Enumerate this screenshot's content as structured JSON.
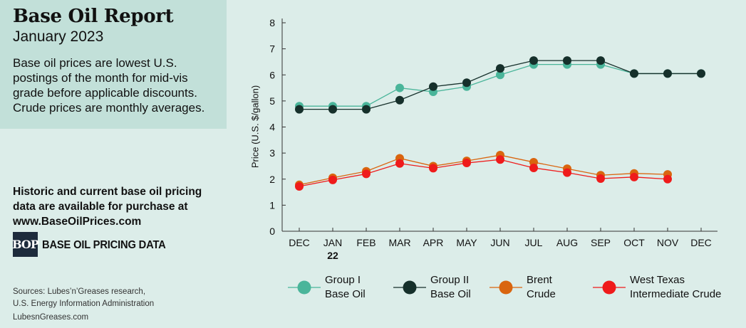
{
  "header": {
    "title": "Base Oil Report",
    "subtitle": "January 2023",
    "description": "Base oil prices are lowest U.S. postings of the month for mid-vis grade before applicable discounts. Crude prices are monthly averages."
  },
  "purchase": {
    "text": "Historic and current base oil pricing data are available for purchase at",
    "url": "www.BaseOilPrices.com"
  },
  "logo": {
    "mark": "BOP",
    "text": "BASE OIL PRICING DATA"
  },
  "sources": {
    "line1": "Sources: Lubes’n’Greases research,",
    "line2": "U.S. Energy Information Administration",
    "site": "LubesnGreases.com"
  },
  "chart_data": {
    "type": "line",
    "ylabel": "Price (U.S. $/gallon)",
    "xlabel": "",
    "ylim": [
      0,
      8
    ],
    "yticks": [
      "0",
      "1",
      "2",
      "3",
      "4",
      "5",
      "6",
      "7",
      "8"
    ],
    "categories": [
      "DEC",
      "JAN",
      "FEB",
      "MAR",
      "APR",
      "MAY",
      "JUN",
      "JUL",
      "AUG",
      "SEP",
      "OCT",
      "NOV",
      "DEC"
    ],
    "year_marker": {
      "label": "22"
    },
    "grid": false,
    "legend_position": "bottom",
    "series": [
      {
        "name": "Group I Base Oil",
        "legend_lines": [
          "Group I",
          "Base Oil"
        ],
        "color": "#4ab59a",
        "values": [
          4.8,
          4.8,
          4.8,
          5.5,
          5.35,
          5.55,
          6.0,
          6.4,
          6.4,
          6.4,
          6.05,
          6.05,
          6.05
        ]
      },
      {
        "name": "Group II Base Oil",
        "legend_lines": [
          "Group II",
          "Base Oil"
        ],
        "color": "#16302b",
        "values": [
          4.68,
          4.68,
          4.68,
          5.03,
          5.55,
          5.7,
          6.25,
          6.55,
          6.55,
          6.55,
          6.05,
          6.05,
          6.05
        ]
      },
      {
        "name": "Brent Crude",
        "legend_lines": [
          "Brent",
          "Crude"
        ],
        "color": "#d9650f",
        "values": [
          1.78,
          2.05,
          2.3,
          2.8,
          2.5,
          2.7,
          2.92,
          2.65,
          2.4,
          2.15,
          2.22,
          2.18,
          null
        ]
      },
      {
        "name": "West Texas Intermediate Crude",
        "legend_lines": [
          "West Texas",
          "Intermediate Crude"
        ],
        "color": "#ef1b1b",
        "values": [
          1.72,
          1.97,
          2.2,
          2.6,
          2.42,
          2.62,
          2.75,
          2.43,
          2.25,
          2.02,
          2.08,
          2.0,
          null
        ]
      }
    ]
  }
}
